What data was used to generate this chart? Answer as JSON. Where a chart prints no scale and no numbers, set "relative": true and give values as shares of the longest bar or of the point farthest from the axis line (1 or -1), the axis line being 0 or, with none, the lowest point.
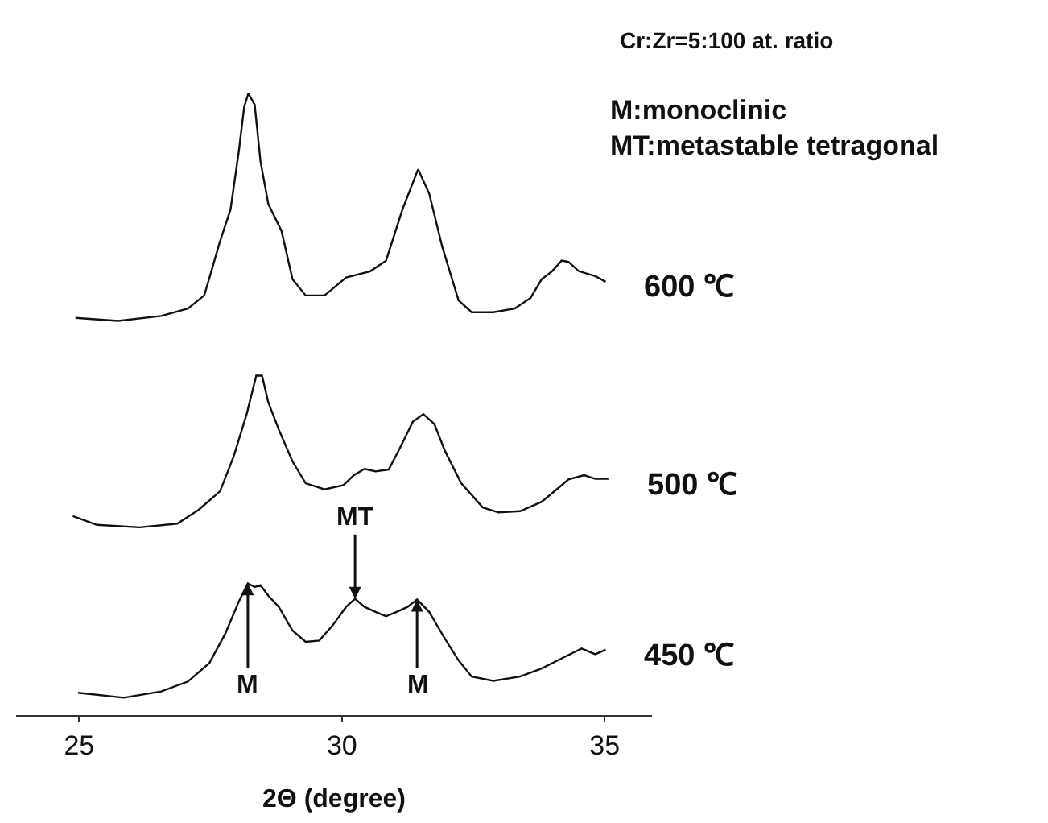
{
  "chart_data": {
    "type": "line",
    "relative": true,
    "xlabel": "2Θ (degree)",
    "xlim": [
      23.8,
      35.9
    ],
    "xticks": [
      25,
      30,
      35
    ],
    "legend": false,
    "marker": "none",
    "line_style": "solid",
    "annotations": [
      "Cr:Zr=5:100 at. ratio",
      "M:monoclinic",
      "MT:metastable tetragonal",
      {
        "text": "M",
        "x": 28.21,
        "y": 0.212
      },
      {
        "text": "MT",
        "x": 30.25,
        "y": 0.187
      },
      {
        "text": "M",
        "x": 31.43,
        "y": 0.186
      }
    ],
    "series": [
      {
        "name": "600 ℃",
        "color": "#111111",
        "x": [
          24.93,
          25.74,
          26.56,
          27.07,
          27.38,
          27.53,
          27.68,
          27.88,
          28.04,
          28.14,
          28.22,
          28.34,
          28.45,
          28.6,
          28.85,
          29.06,
          29.31,
          29.67,
          30.08,
          30.54,
          30.84,
          31.15,
          31.45,
          31.66,
          31.91,
          32.22,
          32.47,
          32.88,
          33.29,
          33.59,
          33.8,
          34.0,
          34.18,
          34.31,
          34.51,
          34.82,
          35.02
        ],
        "values": [
          0.639,
          0.634,
          0.642,
          0.654,
          0.675,
          0.718,
          0.762,
          0.813,
          0.908,
          0.978,
          1.0,
          0.982,
          0.891,
          0.822,
          0.779,
          0.701,
          0.675,
          0.675,
          0.704,
          0.714,
          0.731,
          0.813,
          0.878,
          0.839,
          0.753,
          0.667,
          0.648,
          0.648,
          0.654,
          0.671,
          0.701,
          0.714,
          0.731,
          0.729,
          0.714,
          0.706,
          0.697
        ]
      },
      {
        "name": "500 ℃",
        "color": "#111111",
        "x": [
          24.88,
          25.34,
          26.15,
          26.87,
          27.27,
          27.68,
          27.94,
          28.19,
          28.37,
          28.48,
          28.6,
          28.8,
          29.06,
          29.31,
          29.67,
          30.03,
          30.23,
          30.43,
          30.64,
          30.89,
          31.1,
          31.35,
          31.55,
          31.76,
          31.96,
          32.27,
          32.68,
          32.98,
          33.39,
          33.8,
          34.1,
          34.31,
          34.61,
          34.82,
          35.07
        ],
        "values": [
          0.32,
          0.306,
          0.302,
          0.308,
          0.33,
          0.36,
          0.416,
          0.485,
          0.546,
          0.546,
          0.503,
          0.459,
          0.408,
          0.373,
          0.363,
          0.37,
          0.386,
          0.396,
          0.392,
          0.395,
          0.429,
          0.472,
          0.484,
          0.468,
          0.425,
          0.373,
          0.334,
          0.326,
          0.328,
          0.343,
          0.364,
          0.379,
          0.386,
          0.38,
          0.38
        ]
      },
      {
        "name": "450 ℃",
        "color": "#111111",
        "x": [
          24.98,
          25.85,
          26.56,
          27.07,
          27.48,
          27.78,
          28.04,
          28.21,
          28.34,
          28.45,
          28.6,
          28.8,
          29.06,
          29.31,
          29.57,
          29.82,
          30.08,
          30.25,
          30.43,
          30.64,
          30.84,
          31.04,
          31.25,
          31.43,
          31.66,
          31.96,
          32.22,
          32.47,
          32.88,
          33.39,
          33.8,
          34.2,
          34.56,
          34.82,
          35.02
        ],
        "values": [
          0.036,
          0.028,
          0.038,
          0.054,
          0.084,
          0.131,
          0.183,
          0.212,
          0.206,
          0.209,
          0.192,
          0.174,
          0.136,
          0.118,
          0.12,
          0.144,
          0.174,
          0.187,
          0.174,
          0.166,
          0.159,
          0.166,
          0.174,
          0.186,
          0.166,
          0.123,
          0.088,
          0.062,
          0.055,
          0.062,
          0.075,
          0.092,
          0.107,
          0.098,
          0.105
        ]
      }
    ]
  }
}
